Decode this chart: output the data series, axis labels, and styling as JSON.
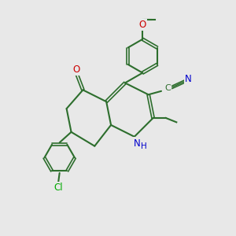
{
  "background_color": "#e8e8e8",
  "bond_color": "#2d6e2d",
  "atom_colors": {
    "O": "#cc0000",
    "N": "#0000cc",
    "Cl": "#00aa00",
    "C": "#2d6e2d",
    "CN": "#2d6e2d"
  },
  "title": "",
  "figsize": [
    3.0,
    3.0
  ],
  "dpi": 100
}
